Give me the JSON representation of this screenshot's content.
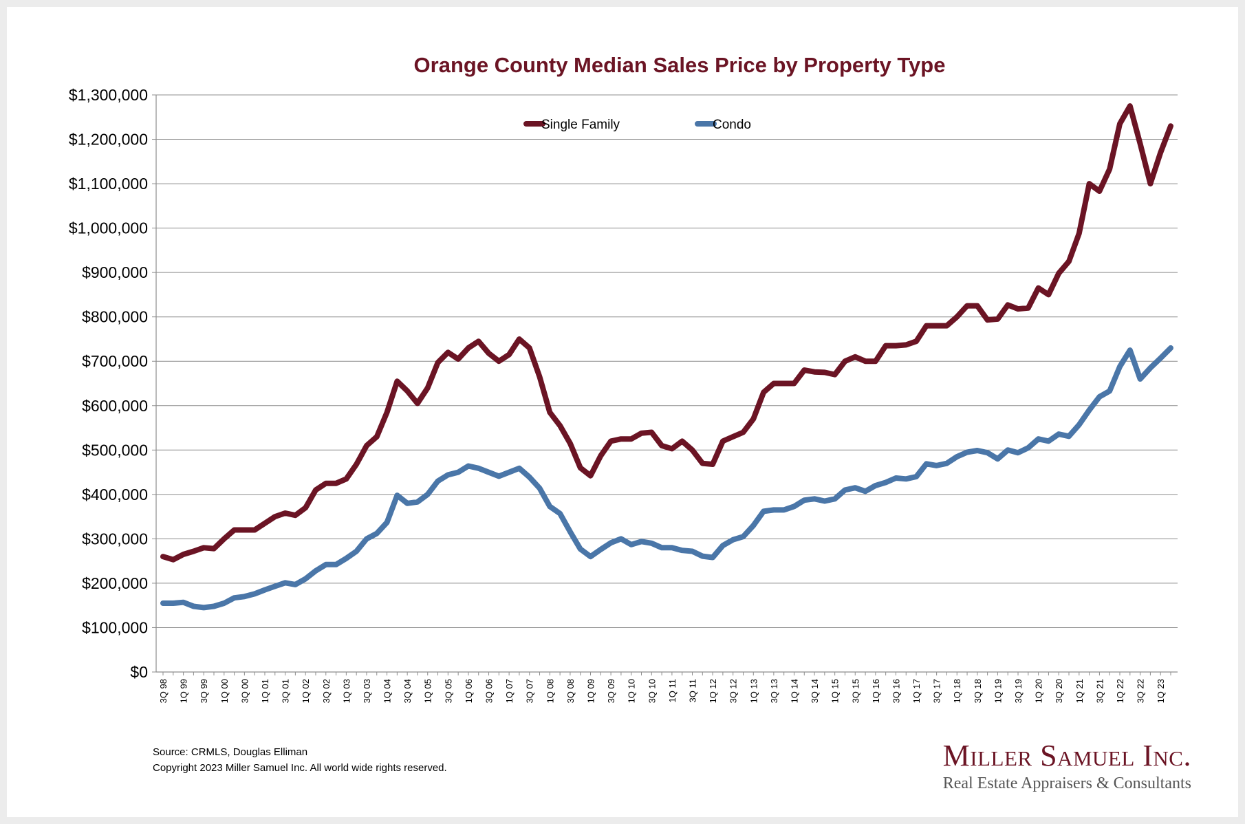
{
  "chart_data": {
    "type": "line",
    "title": "Orange County Median Sales Price by Property Type",
    "xlabel": "",
    "ylabel": "",
    "ylim": [
      0,
      1300000
    ],
    "yticks": [
      "$0",
      "$100,000",
      "$200,000",
      "$300,000",
      "$400,000",
      "$500,000",
      "$600,000",
      "$700,000",
      "$800,000",
      "$900,000",
      "$1,000,000",
      "$1,100,000",
      "$1,200,000",
      "$1,300,000"
    ],
    "grid": "horizontal",
    "legend": "top-center",
    "x": [
      "3Q 98",
      "4Q 98",
      "1Q 99",
      "2Q 99",
      "3Q 99",
      "4Q 99",
      "1Q 00",
      "2Q 00",
      "3Q 00",
      "4Q 00",
      "1Q 01",
      "2Q 01",
      "3Q 01",
      "4Q 01",
      "1Q 02",
      "2Q 02",
      "3Q 02",
      "4Q 02",
      "1Q 03",
      "2Q 03",
      "3Q 03",
      "4Q 03",
      "1Q 04",
      "2Q 04",
      "3Q 04",
      "4Q 04",
      "1Q 05",
      "2Q 05",
      "3Q 05",
      "4Q 05",
      "1Q 06",
      "2Q 06",
      "3Q 06",
      "4Q 06",
      "1Q 07",
      "2Q 07",
      "3Q 07",
      "4Q 07",
      "1Q 08",
      "2Q 08",
      "3Q 08",
      "4Q 08",
      "1Q 09",
      "2Q 09",
      "3Q 09",
      "4Q 09",
      "1Q 10",
      "2Q 10",
      "3Q 10",
      "4Q 10",
      "1Q 11",
      "2Q 11",
      "3Q 11",
      "4Q 11",
      "1Q 12",
      "2Q 12",
      "3Q 12",
      "4Q 12",
      "1Q 13",
      "2Q 13",
      "3Q 13",
      "4Q 13",
      "1Q 14",
      "2Q 14",
      "3Q 14",
      "4Q 14",
      "1Q 15",
      "2Q 15",
      "3Q 15",
      "4Q 15",
      "1Q 16",
      "2Q 16",
      "3Q 16",
      "4Q 16",
      "1Q 17",
      "2Q 17",
      "3Q 17",
      "4Q 17",
      "1Q 18",
      "2Q 18",
      "3Q 18",
      "4Q 18",
      "1Q 19",
      "2Q 19",
      "3Q 19",
      "4Q 19",
      "1Q 20",
      "2Q 20",
      "3Q 20",
      "4Q 20",
      "1Q 21",
      "2Q 21",
      "3Q 21",
      "4Q 21",
      "1Q 22",
      "2Q 22",
      "3Q 22",
      "4Q 22",
      "1Q 23",
      "2Q 23"
    ],
    "xtick_labels": [
      "3Q 98",
      "1Q 99",
      "3Q 99",
      "1Q 00",
      "3Q 00",
      "1Q 01",
      "3Q 01",
      "1Q 02",
      "3Q 02",
      "1Q 03",
      "3Q 03",
      "1Q 04",
      "3Q 04",
      "1Q 05",
      "3Q 05",
      "1Q 06",
      "3Q 06",
      "1Q 07",
      "3Q 07",
      "1Q 08",
      "3Q 08",
      "1Q 09",
      "3Q 09",
      "1Q 10",
      "3Q 10",
      "1Q 11",
      "3Q 11",
      "1Q 12",
      "3Q 12",
      "1Q 13",
      "3Q 13",
      "1Q 14",
      "3Q 14",
      "1Q 15",
      "3Q 15",
      "1Q 16",
      "3Q 16",
      "1Q 17",
      "3Q 17",
      "1Q 18",
      "3Q 18",
      "1Q 19",
      "3Q 19",
      "1Q 20",
      "3Q 20",
      "1Q 21",
      "3Q 21",
      "1Q 22",
      "3Q 22",
      "1Q 23"
    ],
    "series": [
      {
        "name": "Single Family",
        "color": "#6b1424",
        "values": [
          260000,
          253000,
          265000,
          272000,
          280000,
          278000,
          300000,
          320000,
          320000,
          320000,
          335000,
          350000,
          358000,
          353000,
          370000,
          410000,
          425000,
          425000,
          435000,
          468000,
          510000,
          530000,
          585000,
          655000,
          633000,
          605000,
          640000,
          697000,
          720000,
          705000,
          730000,
          745000,
          718000,
          700000,
          715000,
          750000,
          730000,
          665000,
          585000,
          555000,
          515000,
          460000,
          442000,
          487000,
          520000,
          525000,
          525000,
          538000,
          540000,
          510000,
          503000,
          520000,
          500000,
          470000,
          468000,
          520000,
          530000,
          540000,
          570000,
          630000,
          650000,
          650000,
          650000,
          680000,
          676000,
          675000,
          670000,
          700000,
          710000,
          700000,
          700000,
          735000,
          735000,
          737000,
          745000,
          780000,
          780000,
          780000,
          800000,
          825000,
          825000,
          793000,
          795000,
          827000,
          818000,
          820000,
          865000,
          850000,
          898000,
          925000,
          988000,
          1100000,
          1083000,
          1133000,
          1235000,
          1275000,
          1190000,
          1100000,
          1170000,
          1230000
        ]
      },
      {
        "name": "Condo",
        "color": "#4a76a8",
        "values": [
          155000,
          155000,
          157000,
          148000,
          145000,
          148000,
          155000,
          167000,
          170000,
          176000,
          185000,
          193000,
          201000,
          197000,
          210000,
          228000,
          242000,
          242000,
          256000,
          272000,
          300000,
          312000,
          337000,
          398000,
          380000,
          383000,
          400000,
          430000,
          444000,
          450000,
          464000,
          459000,
          450000,
          441000,
          450000,
          459000,
          439000,
          414000,
          373000,
          357000,
          316000,
          277000,
          260000,
          276000,
          291000,
          300000,
          287000,
          294000,
          290000,
          280000,
          280000,
          274000,
          272000,
          261000,
          258000,
          285000,
          298000,
          305000,
          330000,
          362000,
          365000,
          365000,
          373000,
          387000,
          390000,
          385000,
          390000,
          410000,
          415000,
          407000,
          420000,
          427000,
          437000,
          435000,
          440000,
          469000,
          465000,
          470000,
          485000,
          495000,
          499000,
          494000,
          480000,
          500000,
          494000,
          505000,
          525000,
          520000,
          536000,
          531000,
          557000,
          590000,
          620000,
          633000,
          688000,
          725000,
          660000,
          685000,
          707000,
          730000
        ]
      }
    ]
  },
  "footer": {
    "source": "Source: CRMLS, Douglas Elliman",
    "copyright": "Copyright 2023 Miller Samuel Inc.  All world wide rights reserved."
  },
  "logo": {
    "name": "Miller Samuel Inc.",
    "tagline": "Real Estate Appraisers & Consultants"
  }
}
